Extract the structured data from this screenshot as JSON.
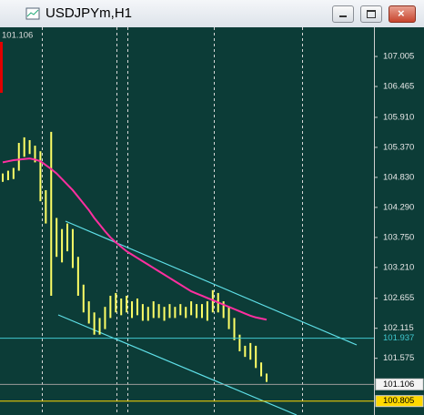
{
  "chart_data": {
    "type": "hl-bars",
    "title": "USDJPYm,H1",
    "last_price": "101.106",
    "bar_color": "#ffff66",
    "ma_color": "#ff2fa0",
    "grid": true,
    "ylim": [
      100.62,
      107.53
    ],
    "yticks": [
      107.005,
      106.465,
      {
        "value": 105.91,
        "label": "105.910"
      },
      {
        "value": 105.37,
        "label": "105.370"
      },
      {
        "value": 104.83,
        "label": "104.830"
      },
      {
        "value": 104.29,
        "label": "104.290"
      },
      {
        "value": 103.75,
        "label": "103.750"
      },
      {
        "value": 103.21,
        "label": "103.210"
      },
      102.655,
      102.115,
      101.575
    ],
    "series": [
      {
        "name": "high",
        "values": [
          104.9,
          104.95,
          105.0,
          105.45,
          105.55,
          105.5,
          105.4,
          105.3,
          104.6,
          105.65,
          104.1,
          103.9,
          104.0,
          103.9,
          103.4,
          102.9,
          102.6,
          102.4,
          102.3,
          102.5,
          102.7,
          102.75,
          102.65,
          102.7,
          102.6,
          102.65,
          102.55,
          102.5,
          102.6,
          102.55,
          102.5,
          102.55,
          102.5,
          102.55,
          102.5,
          102.6,
          102.55,
          102.55,
          102.6,
          102.8,
          102.75,
          102.6,
          102.5,
          102.3,
          102.0,
          101.8,
          101.85,
          101.8,
          101.5,
          101.3
        ]
      },
      {
        "name": "low",
        "values": [
          104.75,
          104.78,
          104.8,
          104.95,
          105.2,
          105.25,
          105.1,
          104.4,
          104.0,
          102.7,
          103.4,
          103.3,
          103.5,
          103.2,
          102.7,
          102.4,
          102.2,
          102.0,
          102.0,
          102.1,
          102.3,
          102.4,
          102.35,
          102.4,
          102.3,
          102.35,
          102.25,
          102.25,
          102.3,
          102.3,
          102.25,
          102.3,
          102.3,
          102.35,
          102.3,
          102.35,
          102.3,
          102.3,
          102.25,
          102.4,
          102.4,
          102.3,
          102.1,
          101.9,
          101.7,
          101.6,
          101.55,
          101.4,
          101.25,
          101.15
        ]
      },
      {
        "name": "ma",
        "values": [
          105.1,
          105.12,
          105.14,
          105.15,
          105.16,
          105.17,
          105.15,
          105.12,
          105.05,
          104.98,
          104.9,
          104.8,
          104.7,
          104.6,
          104.48,
          104.36,
          104.24,
          104.1,
          103.98,
          103.86,
          103.75,
          103.66,
          103.58,
          103.5,
          103.44,
          103.38,
          103.32,
          103.26,
          103.2,
          103.14,
          103.08,
          103.02,
          102.96,
          102.9,
          102.84,
          102.78,
          102.74,
          102.7,
          102.66,
          102.62,
          102.58,
          102.54,
          102.5,
          102.46,
          102.42,
          102.38,
          102.34,
          102.31,
          102.29,
          102.27
        ]
      }
    ],
    "levels": [
      {
        "value": 101.937,
        "color": "#40c8d0"
      },
      {
        "value": 101.106,
        "color": "#9a9a9a"
      },
      {
        "value": 100.805,
        "color": "#ffd800"
      }
    ]
  }
}
